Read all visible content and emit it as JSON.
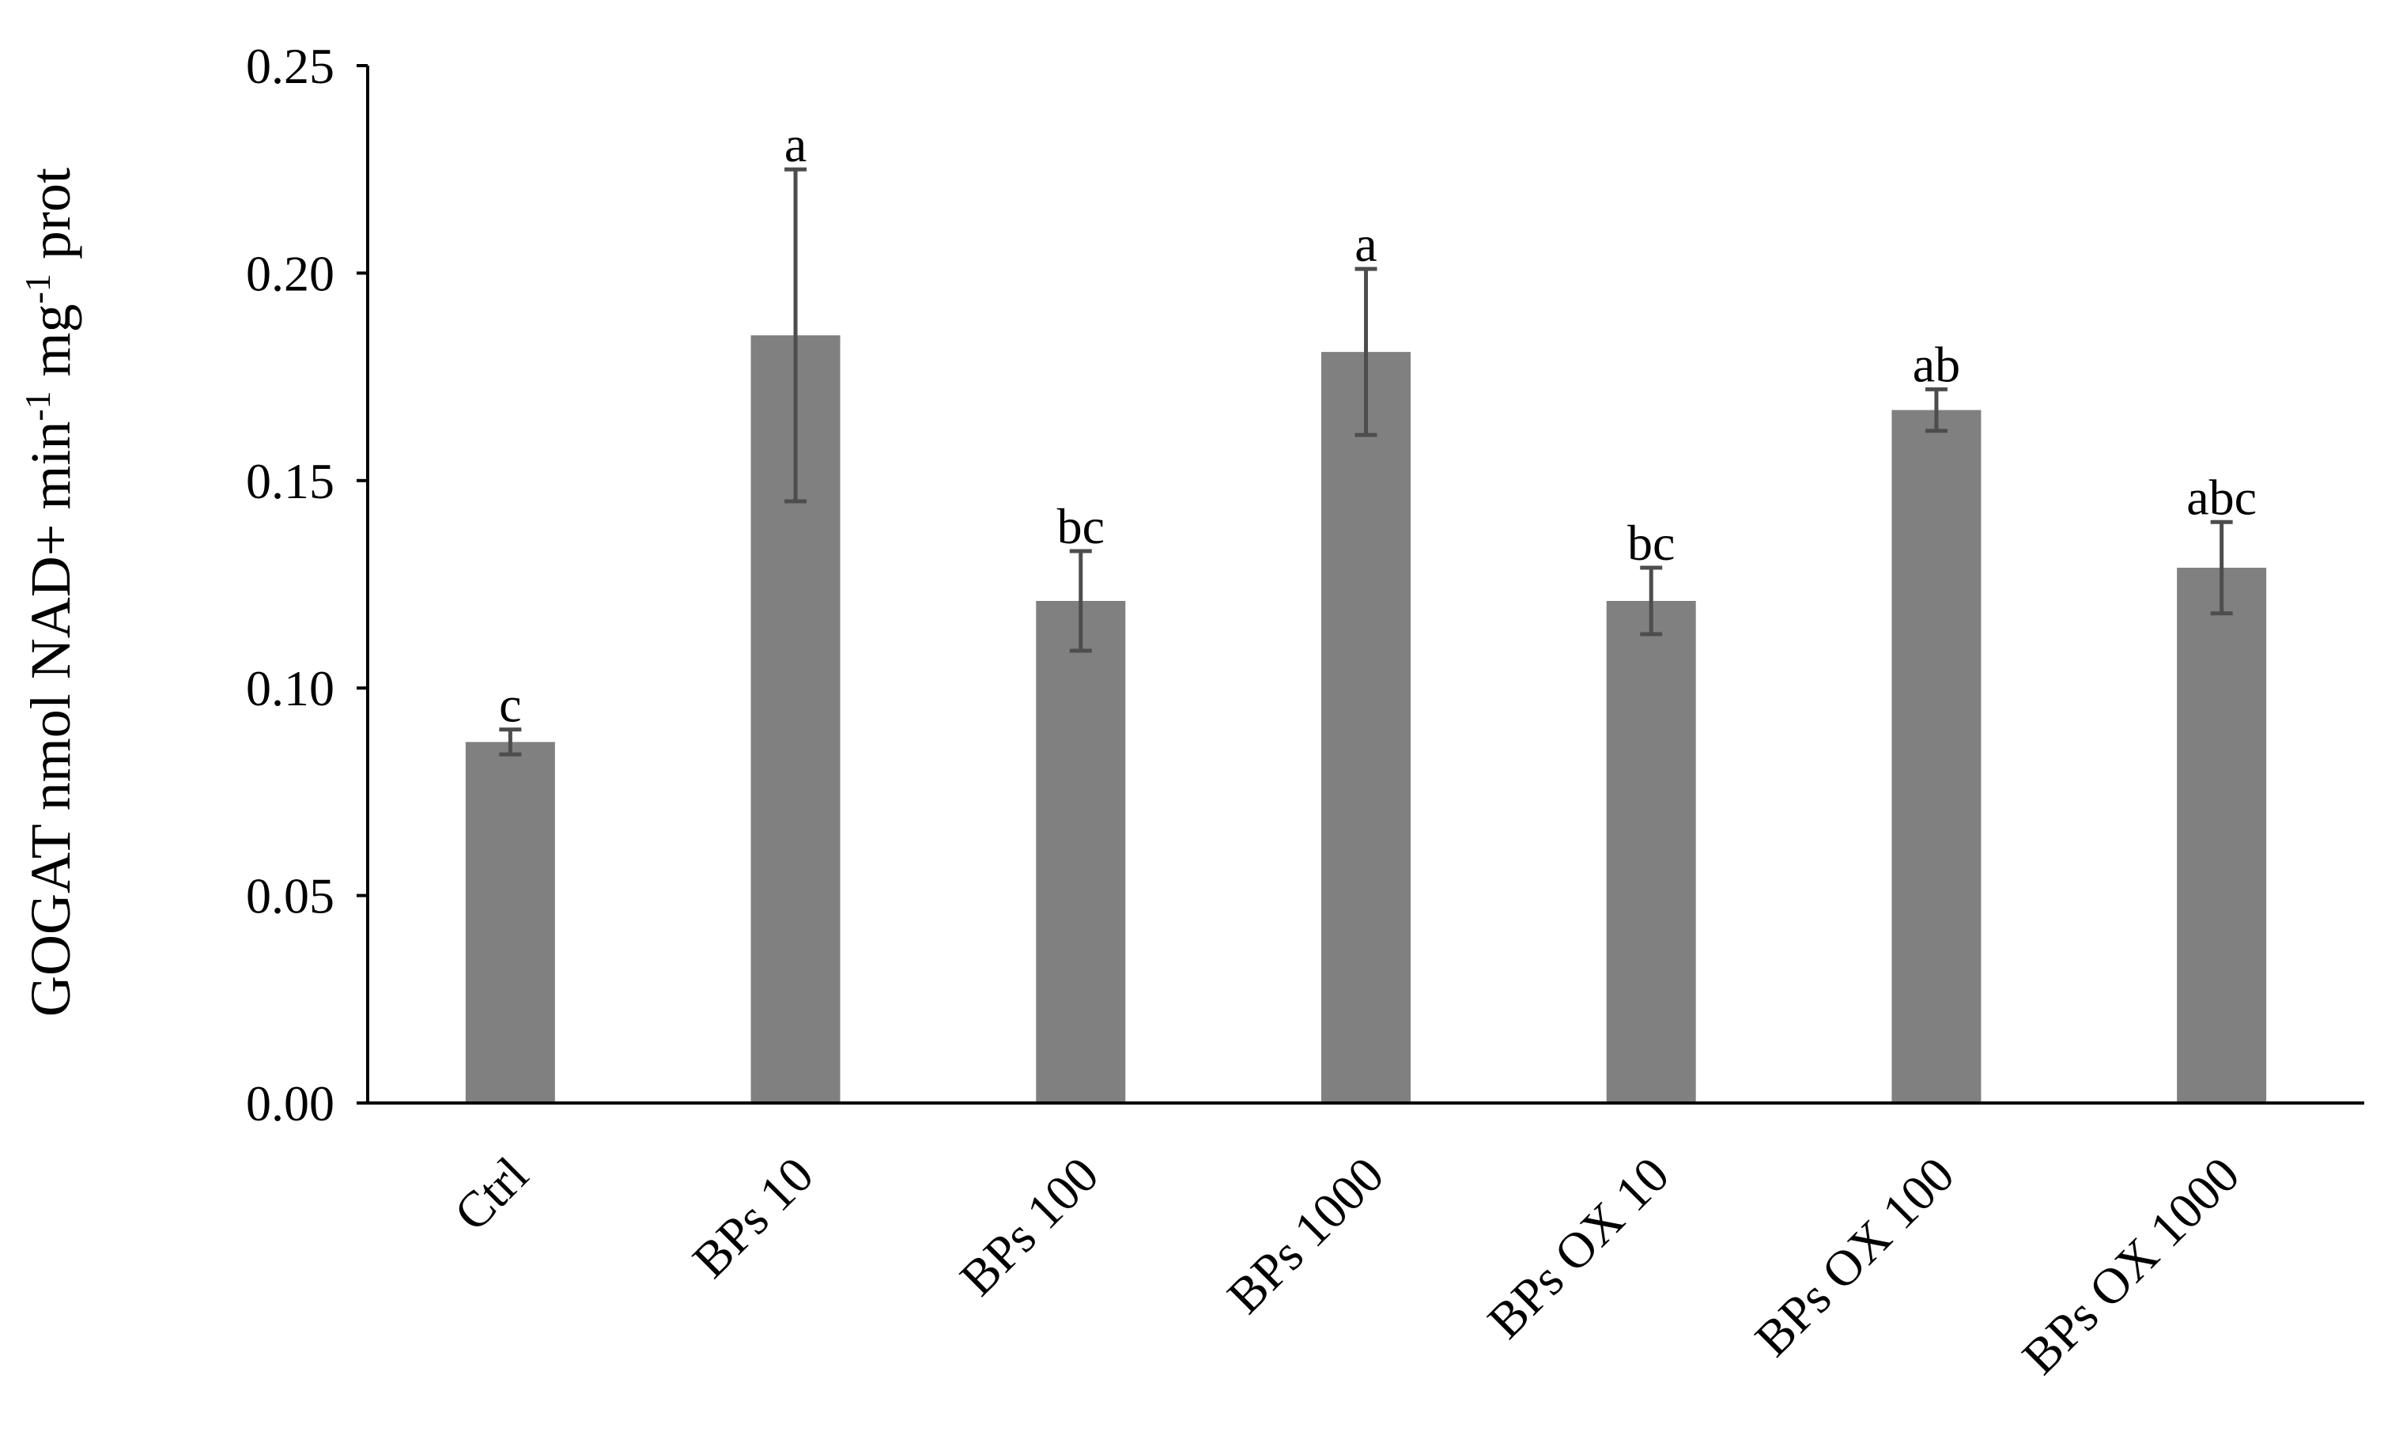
{
  "chart_data": {
    "type": "bar",
    "categories": [
      "Ctrl",
      "BPs 10",
      "BPs 100",
      "BPs 1000",
      "BPs OX 10",
      "BPs OX 100",
      "BPs OX 1000"
    ],
    "values": [
      0.087,
      0.185,
      0.121,
      0.181,
      0.121,
      0.167,
      0.129
    ],
    "errors": [
      0.003,
      0.04,
      0.012,
      0.02,
      0.008,
      0.005,
      0.011
    ],
    "significance_letters": [
      "c",
      "a",
      "bc",
      "a",
      "bc",
      "ab",
      "abc"
    ],
    "ylabel": {
      "part1": "GOGAT nmol NAD+ min",
      "sup1": "-1",
      "part2": " mg",
      "sup2": "-1",
      "part3": " prot"
    },
    "ylim": [
      0,
      0.25
    ],
    "yticks": [
      "0.00",
      "0.05",
      "0.10",
      "0.15",
      "0.20",
      "0.25"
    ],
    "bar_color": "#808080",
    "error_color": "#4d4d4d",
    "grid": false
  }
}
